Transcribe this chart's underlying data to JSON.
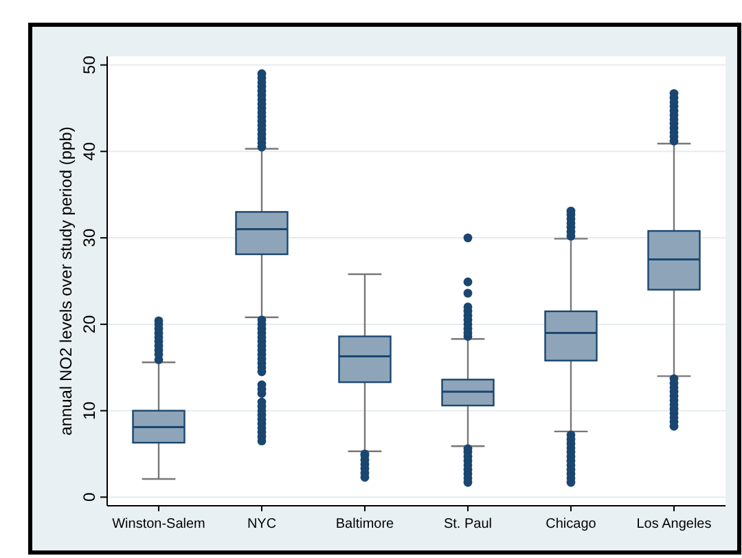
{
  "chart_data": {
    "type": "box",
    "ylabel": "annual NO2 levels over study period (ppb)",
    "categories": [
      "Winston-Salem",
      "NYC",
      "Baltimore",
      "St. Paul",
      "Chicago",
      "Los Angeles"
    ],
    "ylim": [
      -1,
      51
    ],
    "yticks": [
      0,
      10,
      20,
      30,
      40,
      50
    ],
    "grid": "y",
    "color": "#8ea5b9",
    "boxes": [
      {
        "low": 2.1,
        "q1": 6.3,
        "median": 8.1,
        "q3": 10,
        "high": 15.6,
        "outliers": [
          15.9,
          16.5,
          17,
          17.5,
          18,
          18.5,
          19,
          19.5,
          20,
          20.4
        ]
      },
      {
        "low": 20.8,
        "q1": 28.1,
        "median": 31,
        "q3": 33,
        "high": 40.3,
        "outliers": [
          6.5,
          7,
          7.5,
          8,
          8.5,
          9,
          9.5,
          10,
          10.5,
          11,
          12,
          12.5,
          13,
          14.5,
          15,
          15.5,
          16,
          16.5,
          17,
          17.5,
          18,
          18.5,
          19,
          19.5,
          20,
          20.5,
          40.5,
          41,
          41.5,
          42,
          42.5,
          43,
          43.5,
          44,
          44.5,
          45,
          45.5,
          46,
          46.5,
          47,
          47.5,
          48,
          48.5,
          49
        ]
      },
      {
        "low": 5.3,
        "q1": 13.3,
        "median": 16.3,
        "q3": 18.6,
        "high": 25.8,
        "outliers": [
          2.3,
          2.8,
          3.3,
          3.8,
          4.3,
          4.8,
          5
        ]
      },
      {
        "low": 5.9,
        "q1": 10.6,
        "median": 12.2,
        "q3": 13.6,
        "high": 18.3,
        "outliers": [
          1.7,
          2.2,
          2.7,
          3.2,
          3.7,
          4.2,
          4.7,
          5.2,
          5.6,
          18.6,
          19,
          19.5,
          20,
          20.5,
          21,
          21.5,
          22,
          23.6,
          24.9,
          30
        ]
      },
      {
        "low": 7.6,
        "q1": 15.8,
        "median": 19,
        "q3": 21.5,
        "high": 29.9,
        "outliers": [
          1.7,
          2.2,
          2.7,
          3.2,
          3.7,
          4.2,
          4.7,
          5.2,
          5.7,
          6.2,
          6.7,
          7.2,
          30.2,
          30.7,
          31.2,
          31.7,
          32.2,
          32.7,
          33.1
        ]
      },
      {
        "low": 14,
        "q1": 24,
        "median": 27.5,
        "q3": 30.8,
        "high": 40.9,
        "outliers": [
          8.2,
          8.7,
          9.2,
          9.7,
          10.2,
          10.7,
          11.2,
          11.7,
          12.2,
          12.7,
          13.2,
          13.7,
          41.2,
          41.7,
          42.2,
          42.7,
          43.2,
          43.7,
          44.2,
          44.7,
          45.2,
          45.7,
          46.2,
          46.7
        ]
      }
    ]
  }
}
